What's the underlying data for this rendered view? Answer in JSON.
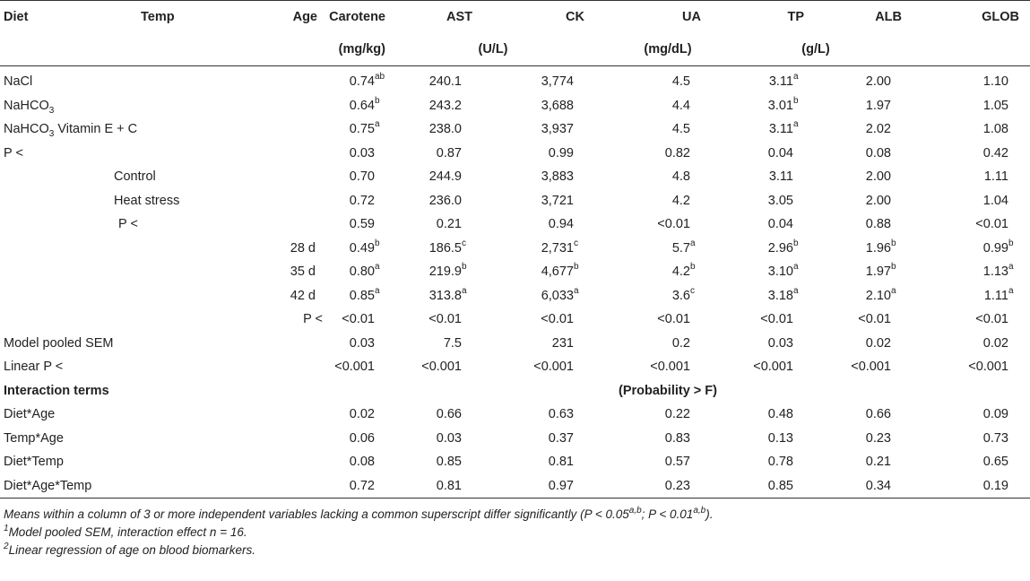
{
  "headers": {
    "diet": "Diet",
    "temp": "Temp",
    "age": "Age",
    "carotene": "Carotene",
    "ast": "AST",
    "ck": "CK",
    "ua": "UA",
    "tp": "TP",
    "alb": "ALB",
    "glob": "GLOB"
  },
  "units": {
    "carotene": "(mg/kg)",
    "ast_ck": "(U/L)",
    "ua": "(mg/dL)",
    "tp_alb": "(g/L)"
  },
  "rows": [
    {
      "diet": "NaCl",
      "temp": "",
      "age": "",
      "vals": [
        [
          "0.74",
          "ab"
        ],
        [
          "240.1",
          ""
        ],
        [
          "3,774",
          ""
        ],
        [
          "4.5",
          ""
        ],
        [
          "3.11",
          "a"
        ],
        [
          "2.00",
          ""
        ],
        [
          "1.10",
          ""
        ]
      ]
    },
    {
      "diet": "NaHCO",
      "diet_sub": "3",
      "diet_rest": "",
      "temp": "",
      "age": "",
      "vals": [
        [
          "0.64",
          "b"
        ],
        [
          "243.2",
          ""
        ],
        [
          "3,688",
          ""
        ],
        [
          "4.4",
          ""
        ],
        [
          "3.01",
          "b"
        ],
        [
          "1.97",
          ""
        ],
        [
          "1.05",
          ""
        ]
      ]
    },
    {
      "diet": "NaHCO",
      "diet_sub": "3",
      "diet_rest": " Vitamin E + C",
      "temp": "",
      "age": "",
      "vals": [
        [
          "0.75",
          "a"
        ],
        [
          "238.0",
          ""
        ],
        [
          "3,937",
          ""
        ],
        [
          "4.5",
          ""
        ],
        [
          "3.11",
          "a"
        ],
        [
          "2.02",
          ""
        ],
        [
          "1.08",
          ""
        ]
      ]
    },
    {
      "diet": "P <",
      "temp": "",
      "age": "",
      "vals": [
        [
          "0.03",
          ""
        ],
        [
          "0.87",
          ""
        ],
        [
          "0.99",
          ""
        ],
        [
          "0.82",
          ""
        ],
        [
          "0.04",
          ""
        ],
        [
          "0.08",
          ""
        ],
        [
          "0.42",
          ""
        ]
      ]
    },
    {
      "diet": "",
      "temp": "Control",
      "age": "",
      "vals": [
        [
          "0.70",
          ""
        ],
        [
          "244.9",
          ""
        ],
        [
          "3,883",
          ""
        ],
        [
          "4.8",
          ""
        ],
        [
          "3.11",
          ""
        ],
        [
          "2.00",
          ""
        ],
        [
          "1.11",
          ""
        ]
      ]
    },
    {
      "diet": "",
      "temp": "Heat stress",
      "age": "",
      "vals": [
        [
          "0.72",
          ""
        ],
        [
          "236.0",
          ""
        ],
        [
          "3,721",
          ""
        ],
        [
          "4.2",
          ""
        ],
        [
          "3.05",
          ""
        ],
        [
          "2.00",
          ""
        ],
        [
          "1.04",
          ""
        ]
      ]
    },
    {
      "diet": "",
      "temp": "P <",
      "age": "",
      "vals": [
        [
          "0.59",
          ""
        ],
        [
          "0.21",
          ""
        ],
        [
          "0.94",
          ""
        ],
        [
          "<0.01",
          ""
        ],
        [
          "0.04",
          ""
        ],
        [
          "0.88",
          ""
        ],
        [
          "<0.01",
          ""
        ]
      ]
    },
    {
      "diet": "",
      "temp": "",
      "age": "28 d",
      "vals": [
        [
          "0.49",
          "b"
        ],
        [
          "186.5",
          "c"
        ],
        [
          "2,731",
          "c"
        ],
        [
          "5.7",
          "a"
        ],
        [
          "2.96",
          "b"
        ],
        [
          "1.96",
          "b"
        ],
        [
          "0.99",
          "b"
        ]
      ]
    },
    {
      "diet": "",
      "temp": "",
      "age": "35 d",
      "vals": [
        [
          "0.80",
          "a"
        ],
        [
          "219.9",
          "b"
        ],
        [
          "4,677",
          "b"
        ],
        [
          "4.2",
          "b"
        ],
        [
          "3.10",
          "a"
        ],
        [
          "1.97",
          "b"
        ],
        [
          "1.13",
          "a"
        ]
      ]
    },
    {
      "diet": "",
      "temp": "",
      "age": "42 d",
      "vals": [
        [
          "0.85",
          "a"
        ],
        [
          "313.8",
          "a"
        ],
        [
          "6,033",
          "a"
        ],
        [
          "3.6",
          "c"
        ],
        [
          "3.18",
          "a"
        ],
        [
          "2.10",
          "a"
        ],
        [
          "1.11",
          "a"
        ]
      ]
    },
    {
      "diet": "",
      "temp": "",
      "age": "P <",
      "vals": [
        [
          "<0.01",
          ""
        ],
        [
          "<0.01",
          ""
        ],
        [
          "<0.01",
          ""
        ],
        [
          "<0.01",
          ""
        ],
        [
          "<0.01",
          ""
        ],
        [
          "<0.01",
          ""
        ],
        [
          "<0.01",
          ""
        ]
      ]
    },
    {
      "diet": "Model pooled SEM",
      "temp": "",
      "age": "",
      "vals": [
        [
          "0.03",
          ""
        ],
        [
          "7.5",
          ""
        ],
        [
          "231",
          ""
        ],
        [
          "0.2",
          ""
        ],
        [
          "0.03",
          ""
        ],
        [
          "0.02",
          ""
        ],
        [
          "0.02",
          ""
        ]
      ]
    },
    {
      "diet": "Linear P <",
      "temp": "",
      "age": "",
      "vals": [
        [
          "<0.001",
          ""
        ],
        [
          "<0.001",
          ""
        ],
        [
          "<0.001",
          ""
        ],
        [
          "<0.001",
          ""
        ],
        [
          "<0.001",
          ""
        ],
        [
          "<0.001",
          ""
        ],
        [
          "<0.001",
          ""
        ]
      ]
    }
  ],
  "interaction_header": {
    "label": "Interaction terms",
    "prob": "(Probability > F)"
  },
  "interaction_rows": [
    {
      "label": "Diet*Age",
      "vals": [
        "0.02",
        "0.66",
        "0.63",
        "0.22",
        "0.48",
        "0.66",
        "0.09"
      ]
    },
    {
      "label": "Temp*Age",
      "vals": [
        "0.06",
        "0.03",
        "0.37",
        "0.83",
        "0.13",
        "0.23",
        "0.73"
      ]
    },
    {
      "label": "Diet*Temp",
      "vals": [
        "0.08",
        "0.85",
        "0.81",
        "0.57",
        "0.78",
        "0.21",
        "0.65"
      ]
    },
    {
      "label": "Diet*Age*Temp",
      "vals": [
        "0.72",
        "0.81",
        "0.97",
        "0.23",
        "0.85",
        "0.34",
        "0.19"
      ]
    }
  ],
  "notes": {
    "n1_pre": "Means within a column of 3 or more independent variables lacking a common superscript differ significantly (",
    "n1_p1": "P < 0.05",
    "n1_sup1": "a,b",
    "n1_mid": "; ",
    "n1_p2": "P < 0.01",
    "n1_sup2": "a,b",
    "n1_end": ").",
    "n2_mark": "1",
    "n2_text": "Model pooled SEM, interaction effect n = 16.",
    "n3_mark": "2",
    "n3_text": "Linear regression of age on blood biomarkers."
  }
}
